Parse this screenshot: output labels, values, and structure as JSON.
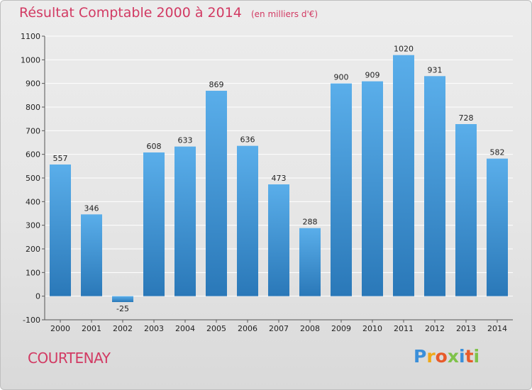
{
  "header": {
    "title": "Résultat Comptable 2000 à 2014",
    "subtitle": "(en milliers d'€)"
  },
  "footer": {
    "commune": "COURTENAY",
    "logo_text": "Proxiti"
  },
  "colors": {
    "title": "#d23a63",
    "bar_top": "#5aaeea",
    "bar_bottom": "#2a78b8",
    "grid": "#ffffff"
  },
  "chart_data": {
    "type": "bar",
    "title": "Résultat Comptable 2000 à 2014",
    "subtitle": "(en milliers d'€)",
    "categories": [
      "2000",
      "2001",
      "2002",
      "2003",
      "2004",
      "2005",
      "2006",
      "2007",
      "2008",
      "2009",
      "2010",
      "2011",
      "2012",
      "2013",
      "2014"
    ],
    "values": [
      557,
      346,
      -25,
      608,
      633,
      869,
      636,
      473,
      288,
      900,
      909,
      1020,
      931,
      728,
      582
    ],
    "ylim": [
      -100,
      1100
    ],
    "yticks": [
      -100,
      0,
      100,
      200,
      300,
      400,
      500,
      600,
      700,
      800,
      900,
      1000,
      1100
    ],
    "grid": true,
    "data_labels": true
  }
}
